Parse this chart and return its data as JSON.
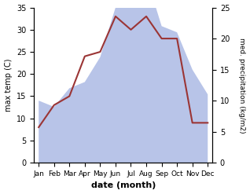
{
  "months": [
    "Jan",
    "Feb",
    "Mar",
    "Apr",
    "May",
    "Jun",
    "Jul",
    "Aug",
    "Sep",
    "Oct",
    "Nov",
    "Dec"
  ],
  "month_x": [
    0,
    1,
    2,
    3,
    4,
    5,
    6,
    7,
    8,
    9,
    10,
    11
  ],
  "temperature": [
    8,
    13,
    15,
    24,
    25,
    33,
    30,
    33,
    28,
    28,
    9,
    9
  ],
  "precipitation": [
    10,
    9,
    12,
    13,
    17,
    25,
    35,
    30,
    22,
    21,
    15,
    11
  ],
  "temp_color": "#9b3535",
  "precip_fill_color": "#b8c4e8",
  "temp_ylim": [
    0,
    35
  ],
  "precip_ylim": [
    0,
    25
  ],
  "temp_yticks": [
    0,
    5,
    10,
    15,
    20,
    25,
    30,
    35
  ],
  "precip_yticks": [
    0,
    5,
    10,
    15,
    20,
    25
  ],
  "ylabel_left": "max temp (C)",
  "ylabel_right": "med. precipitation (kg/m2)",
  "xlabel": "date (month)",
  "fig_width": 3.18,
  "fig_height": 2.47,
  "dpi": 100
}
